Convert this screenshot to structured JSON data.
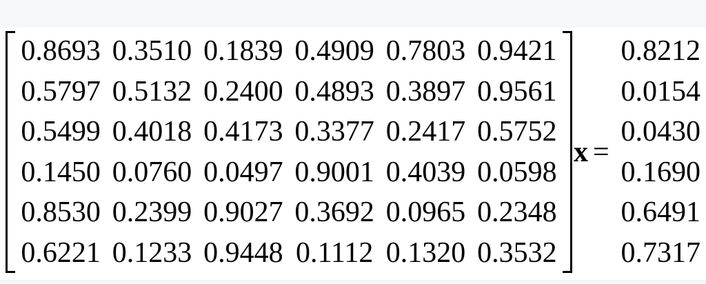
{
  "colors": {
    "page_background": "#ffffff",
    "band_background": "#f7f8f9",
    "text": "#000000"
  },
  "equation": {
    "matrix_rows": [
      [
        "0.8693",
        "0.3510",
        "0.1839",
        "0.4909",
        "0.7803",
        "0.9421"
      ],
      [
        "0.5797",
        "0.5132",
        "0.2400",
        "0.4893",
        "0.3897",
        "0.9561"
      ],
      [
        "0.5499",
        "0.4018",
        "0.4173",
        "0.3377",
        "0.2417",
        "0.5752"
      ],
      [
        "0.1450",
        "0.0760",
        "0.0497",
        "0.9001",
        "0.4039",
        "0.0598"
      ],
      [
        "0.8530",
        "0.2399",
        "0.9027",
        "0.3692",
        "0.0965",
        "0.2348"
      ],
      [
        "0.6221",
        "0.1233",
        "0.9448",
        "0.1112",
        "0.1320",
        "0.3532"
      ]
    ],
    "variable": "x",
    "equals": "=",
    "vector_values": [
      "0.8212",
      "0.0154",
      "0.0430",
      "0.1690",
      "0.6491",
      "0.7317"
    ]
  }
}
